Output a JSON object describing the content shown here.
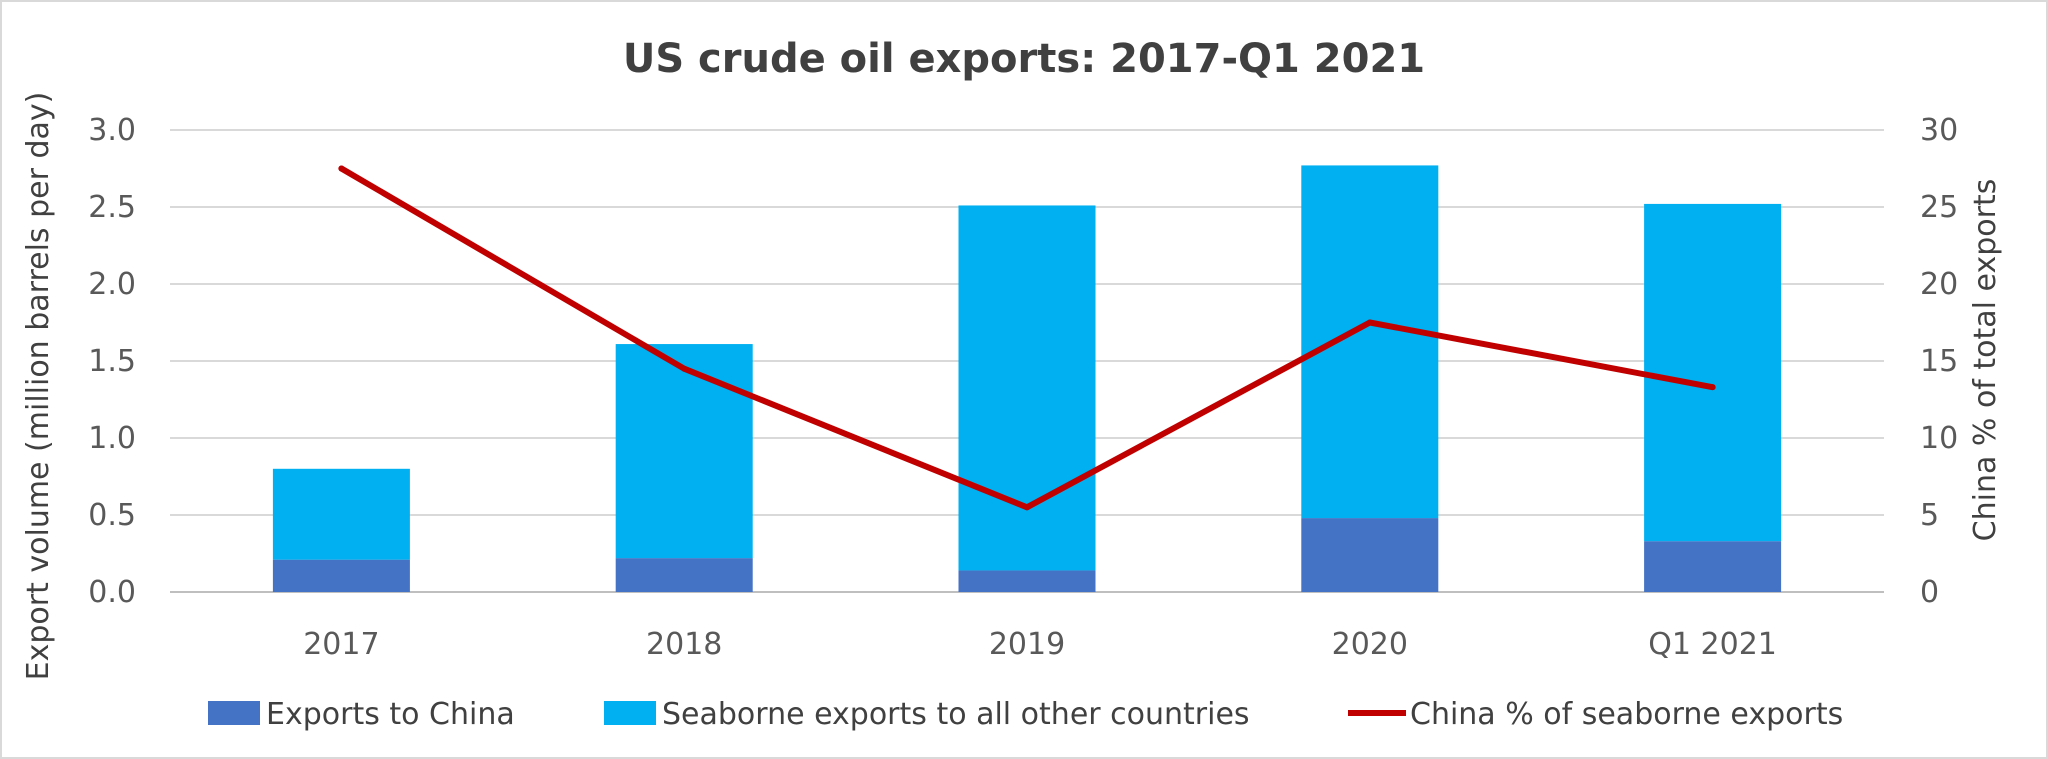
{
  "chart_data": {
    "type": "bar",
    "title": "US crude oil exports: 2017-Q1 2021",
    "categories": [
      "2017",
      "2018",
      "2019",
      "2020",
      "Q1 2021"
    ],
    "ylabel": "Export volume (million barrels per day)",
    "y2label": "China % of total exports",
    "ylim": [
      0,
      3.0
    ],
    "y2lim": [
      0,
      30
    ],
    "yticks": [
      "0.0",
      "0.5",
      "1.0",
      "1.5",
      "2.0",
      "2.5",
      "3.0"
    ],
    "y2ticks": [
      "0",
      "5",
      "10",
      "15",
      "20",
      "25",
      "30"
    ],
    "grid": true,
    "legend_position": "bottom",
    "stacked": true,
    "series": [
      {
        "name": "Exports to China",
        "type": "bar",
        "color": "#4472c4",
        "values": [
          0.21,
          0.22,
          0.14,
          0.48,
          0.33
        ]
      },
      {
        "name": "Seaborne exports to all other countries",
        "type": "bar",
        "color": "#00b0f0",
        "values": [
          0.59,
          1.39,
          2.37,
          2.29,
          2.19
        ]
      },
      {
        "name": "China % of seaborne exports",
        "type": "line",
        "axis": "secondary",
        "color": "#c00000",
        "values": [
          27.5,
          14.5,
          5.5,
          17.5,
          13.3
        ]
      }
    ]
  }
}
